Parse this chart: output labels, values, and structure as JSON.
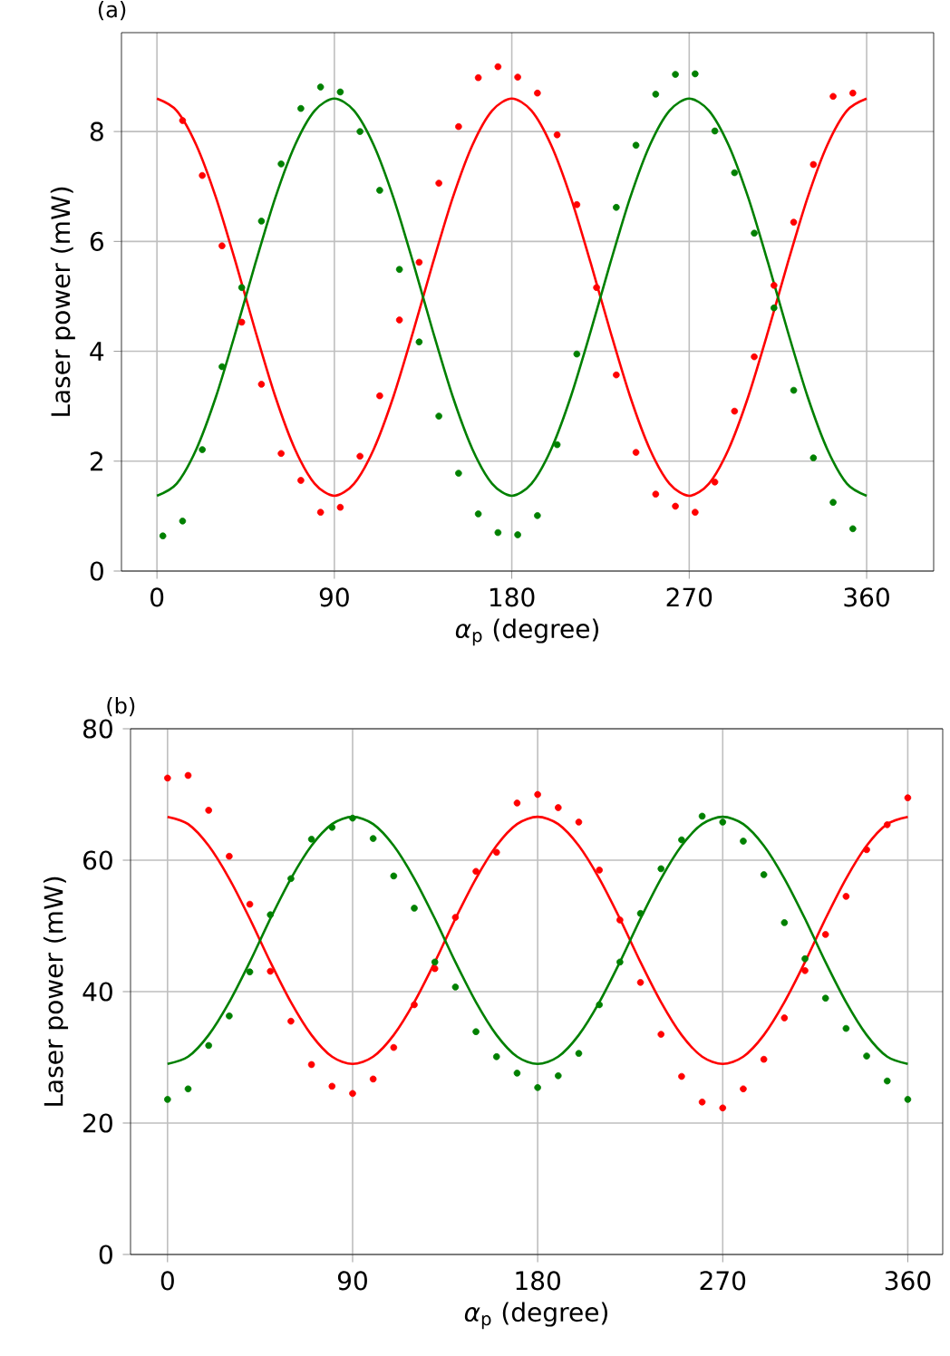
{
  "chart_data": [
    {
      "type": "scatter",
      "title": "(a)",
      "xlabel": "*α*$_{p}$ (degree)",
      "ylabel": "Laser power (mW)",
      "xlim": [
        -18,
        394
      ],
      "ylim": [
        0,
        9.8
      ],
      "xticks": [
        0,
        90,
        180,
        270,
        360
      ],
      "yticks": [
        0,
        2,
        4,
        6,
        8
      ],
      "grid": true,
      "marker": "circle",
      "series": [
        {
          "color": "#ff0000",
          "x": [
            13,
            23,
            33,
            43,
            53,
            63,
            73,
            83,
            93,
            103,
            113,
            123,
            133,
            143,
            153,
            163,
            173,
            183,
            193,
            203,
            213,
            223,
            233,
            243,
            253,
            263,
            273,
            283,
            293,
            303,
            313,
            323,
            333,
            343,
            353
          ],
          "values": [
            8.2,
            7.2,
            5.92,
            4.53,
            3.4,
            2.14,
            1.65,
            1.07,
            1.16,
            2.09,
            3.19,
            4.57,
            5.62,
            7.06,
            8.09,
            8.98,
            9.18,
            8.99,
            8.7,
            7.94,
            6.67,
            5.16,
            3.57,
            2.16,
            1.4,
            1.18,
            1.07,
            1.62,
            2.91,
            3.9,
            5.2,
            6.35,
            7.4,
            8.64,
            8.7
          ]
        },
        {
          "color": "#008000",
          "x": [
            3,
            13,
            23,
            33,
            43,
            53,
            63,
            73,
            83,
            93,
            103,
            113,
            123,
            133,
            143,
            153,
            163,
            173,
            183,
            193,
            203,
            213,
            223,
            233,
            243,
            253,
            263,
            273,
            283,
            293,
            303,
            313,
            323,
            333,
            343,
            353
          ],
          "values": [
            0.64,
            0.91,
            2.21,
            3.72,
            5.16,
            6.37,
            7.41,
            8.42,
            8.81,
            8.72,
            8.0,
            6.93,
            5.49,
            4.17,
            2.82,
            1.78,
            1.04,
            0.7,
            0.66,
            1.01,
            2.3,
            3.95,
            null,
            6.62,
            7.75,
            8.68,
            9.04,
            9.05,
            8.01,
            7.25,
            6.15,
            4.79,
            3.29,
            2.06,
            1.25,
            0.77
          ]
        },
        {
          "type": "line",
          "marker": "none",
          "color": "#ff0000",
          "x": [
            0,
            10,
            20,
            30,
            40,
            50,
            60,
            70,
            80,
            90,
            100,
            110,
            120,
            130,
            140,
            150,
            160,
            170,
            180,
            190,
            200,
            210,
            220,
            230,
            240,
            250,
            260,
            270,
            280,
            290,
            300,
            310,
            320,
            330,
            340,
            350,
            360
          ],
          "values": [
            8.6,
            8.38,
            7.75,
            6.79,
            5.61,
            4.36,
            3.18,
            2.22,
            1.59,
            1.37,
            1.59,
            2.22,
            3.18,
            4.36,
            5.61,
            6.79,
            7.75,
            8.38,
            8.6,
            8.38,
            7.75,
            6.79,
            5.61,
            4.36,
            3.18,
            2.22,
            1.59,
            1.37,
            1.59,
            2.22,
            3.18,
            4.36,
            5.61,
            6.79,
            7.75,
            8.38,
            8.6
          ]
        },
        {
          "type": "line",
          "marker": "none",
          "color": "#008000",
          "x": [
            0,
            10,
            20,
            30,
            40,
            50,
            60,
            70,
            80,
            90,
            100,
            110,
            120,
            130,
            140,
            150,
            160,
            170,
            180,
            190,
            200,
            210,
            220,
            230,
            240,
            250,
            260,
            270,
            280,
            290,
            300,
            310,
            320,
            330,
            340,
            350,
            360
          ],
          "values": [
            1.37,
            1.59,
            2.22,
            3.18,
            4.36,
            5.61,
            6.79,
            7.75,
            8.38,
            8.6,
            8.38,
            7.75,
            6.79,
            5.61,
            4.36,
            3.18,
            2.22,
            1.59,
            1.37,
            1.59,
            2.22,
            3.18,
            4.36,
            5.61,
            6.79,
            7.75,
            8.38,
            8.6,
            8.38,
            7.75,
            6.79,
            5.61,
            4.36,
            3.18,
            2.22,
            1.59,
            1.37
          ]
        }
      ]
    },
    {
      "type": "scatter",
      "title": "(b)",
      "xlabel": "*α*$_{p}$ (degree)",
      "ylabel": "Laser power (mW)",
      "xlim": [
        -18,
        377
      ],
      "ylim": [
        0,
        80
      ],
      "xticks": [
        0,
        90,
        180,
        270,
        360
      ],
      "yticks": [
        0,
        20,
        40,
        60,
        80
      ],
      "grid": true,
      "marker": "circle",
      "series": [
        {
          "color": "#ff0000",
          "x": [
            0,
            10,
            20,
            30,
            40,
            50,
            60,
            70,
            80,
            90,
            100,
            110,
            120,
            130,
            140,
            150,
            160,
            170,
            180,
            190,
            200,
            210,
            220,
            230,
            240,
            250,
            260,
            270,
            280,
            290,
            300,
            310,
            320,
            330,
            340,
            350,
            360
          ],
          "values": [
            72.5,
            72.9,
            67.6,
            60.6,
            53.3,
            43.1,
            35.5,
            28.9,
            25.6,
            24.5,
            26.7,
            31.5,
            38.0,
            43.5,
            51.3,
            58.3,
            61.2,
            68.7,
            70.0,
            68.0,
            65.8,
            58.5,
            50.9,
            41.4,
            33.5,
            27.1,
            23.2,
            22.3,
            25.2,
            29.7,
            36.0,
            43.2,
            48.7,
            54.5,
            61.6,
            65.4,
            69.5
          ]
        },
        {
          "color": "#008000",
          "x": [
            0,
            10,
            20,
            30,
            40,
            50,
            60,
            70,
            80,
            90,
            100,
            110,
            120,
            130,
            140,
            150,
            160,
            170,
            180,
            190,
            200,
            210,
            220,
            230,
            240,
            250,
            260,
            270,
            280,
            290,
            300,
            310,
            320,
            330,
            340,
            350,
            360
          ],
          "values": [
            23.6,
            25.2,
            31.8,
            36.3,
            43.0,
            51.7,
            57.2,
            63.2,
            65.0,
            66.4,
            63.3,
            57.6,
            52.7,
            44.5,
            40.7,
            33.9,
            30.1,
            27.6,
            25.4,
            27.2,
            30.6,
            38.0,
            44.5,
            51.9,
            58.7,
            63.1,
            66.7,
            65.8,
            62.9,
            57.8,
            50.5,
            45.0,
            39.0,
            34.4,
            30.2,
            26.4,
            23.6
          ]
        },
        {
          "type": "line",
          "marker": "none",
          "color": "#ff0000",
          "x": [
            0,
            10,
            20,
            30,
            40,
            50,
            60,
            70,
            80,
            90,
            100,
            110,
            120,
            130,
            140,
            150,
            160,
            170,
            180,
            190,
            200,
            210,
            220,
            230,
            240,
            250,
            260,
            270,
            280,
            290,
            300,
            310,
            320,
            330,
            340,
            350,
            360
          ],
          "values": [
            66.6,
            65.5,
            62.2,
            57.2,
            51.1,
            44.5,
            38.4,
            33.4,
            30.1,
            29.0,
            30.1,
            33.4,
            38.4,
            44.5,
            51.1,
            57.2,
            62.2,
            65.5,
            66.6,
            65.5,
            62.2,
            57.2,
            51.1,
            44.5,
            38.4,
            33.4,
            30.1,
            29.0,
            30.1,
            33.4,
            38.4,
            44.5,
            51.1,
            57.2,
            62.2,
            65.5,
            66.6
          ]
        },
        {
          "type": "line",
          "marker": "none",
          "color": "#008000",
          "x": [
            0,
            10,
            20,
            30,
            40,
            50,
            60,
            70,
            80,
            90,
            100,
            110,
            120,
            130,
            140,
            150,
            160,
            170,
            180,
            190,
            200,
            210,
            220,
            230,
            240,
            250,
            260,
            270,
            280,
            290,
            300,
            310,
            320,
            330,
            340,
            350,
            360
          ],
          "values": [
            29.0,
            30.1,
            33.4,
            38.4,
            44.5,
            51.1,
            57.2,
            62.2,
            65.5,
            66.6,
            65.5,
            62.2,
            57.2,
            51.1,
            44.5,
            38.4,
            33.4,
            30.1,
            29.0,
            30.1,
            33.4,
            38.4,
            44.5,
            51.1,
            57.2,
            62.2,
            65.5,
            66.6,
            65.5,
            62.2,
            57.2,
            51.1,
            44.5,
            38.4,
            33.4,
            30.1,
            29.0
          ]
        }
      ]
    }
  ]
}
